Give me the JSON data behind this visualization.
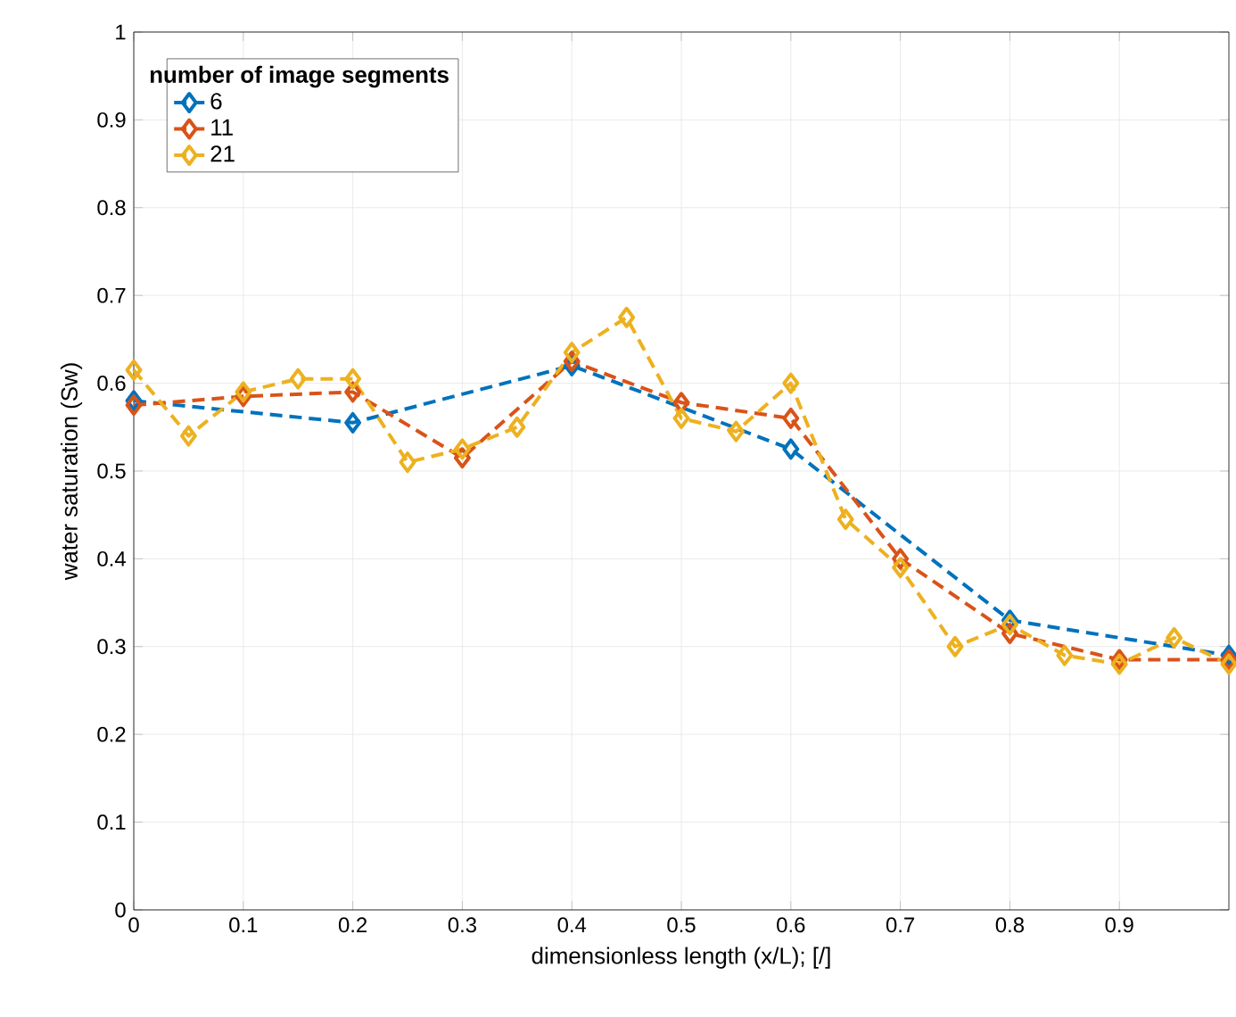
{
  "chart_data": {
    "type": "line",
    "xlabel": "dimensionless length (x/L); [/]",
    "ylabel": "water saturation (Sw)",
    "legend_title": "number of image segments",
    "xlim": [
      0,
      1
    ],
    "xticks": [
      0,
      0.1,
      0.2,
      0.3,
      0.4,
      0.5,
      0.6,
      0.7,
      0.8,
      0.9
    ],
    "ylim": [
      0,
      1
    ],
    "yticks": [
      0,
      0.1,
      0.2,
      0.3,
      0.4,
      0.5,
      0.6,
      0.7,
      0.8,
      0.9,
      1
    ],
    "grid": true,
    "legend": "top left",
    "marker": "diamond",
    "line_style": "dashed",
    "series": [
      {
        "name": "6",
        "color": "#0072bd",
        "x": [
          0,
          0.2,
          0.4,
          0.6,
          0.8,
          1.0
        ],
        "values": [
          0.58,
          0.555,
          0.62,
          0.525,
          0.33,
          0.29
        ]
      },
      {
        "name": "11",
        "color": "#d95319",
        "x": [
          0,
          0.1,
          0.2,
          0.3,
          0.4,
          0.5,
          0.6,
          0.7,
          0.8,
          0.9,
          1.0
        ],
        "values": [
          0.575,
          0.585,
          0.59,
          0.515,
          0.625,
          0.578,
          0.56,
          0.4,
          0.315,
          0.285,
          0.285
        ]
      },
      {
        "name": "21",
        "color": "#edb120",
        "x": [
          0,
          0.05,
          0.1,
          0.15,
          0.2,
          0.25,
          0.3,
          0.35,
          0.4,
          0.45,
          0.5,
          0.55,
          0.6,
          0.65,
          0.7,
          0.75,
          0.8,
          0.85,
          0.9,
          0.95,
          1.0
        ],
        "values": [
          0.615,
          0.54,
          0.59,
          0.605,
          0.605,
          0.51,
          0.525,
          0.55,
          0.635,
          0.675,
          0.56,
          0.545,
          0.6,
          0.445,
          0.39,
          0.3,
          0.325,
          0.29,
          0.28,
          0.31,
          0.28
        ]
      }
    ]
  }
}
